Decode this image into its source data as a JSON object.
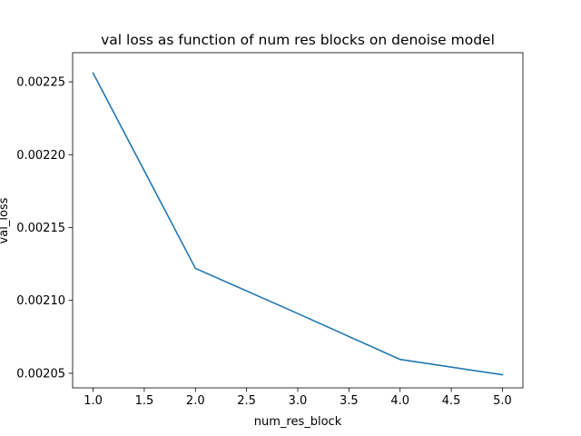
{
  "chart_data": {
    "type": "line",
    "title": "val loss as function of num res blocks on denoise model",
    "xlabel": "num_res_block",
    "ylabel": "val_loss",
    "xlim": [
      0.8,
      5.2
    ],
    "ylim": [
      0.00204,
      0.00227
    ],
    "x_ticks": [
      1.0,
      1.5,
      2.0,
      2.5,
      3.0,
      3.5,
      4.0,
      4.5,
      5.0
    ],
    "x_tick_labels": [
      "1.0",
      "1.5",
      "2.0",
      "2.5",
      "3.0",
      "3.5",
      "4.0",
      "4.5",
      "5.0"
    ],
    "y_ticks": [
      0.00205,
      0.0021,
      0.00215,
      0.0022,
      0.00225
    ],
    "y_tick_labels": [
      "0.00205",
      "0.00210",
      "0.00215",
      "0.00220",
      "0.00225"
    ],
    "grid": false,
    "series": [
      {
        "color": "#1f77b4",
        "x": [
          1,
          2,
          3,
          4,
          5
        ],
        "y": [
          0.002256,
          0.002122,
          0.002091,
          0.0020595,
          0.002049
        ]
      }
    ]
  }
}
